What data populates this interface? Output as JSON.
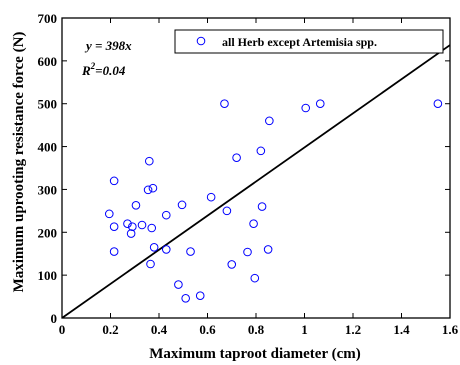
{
  "chart_data": {
    "type": "scatter",
    "title": "",
    "xlabel": "Maximum taproot diameter (cm)",
    "ylabel": "Maximum uprooting resistance force (N)",
    "xlim": [
      0,
      1.6
    ],
    "ylim": [
      0,
      700
    ],
    "xticks": [
      "0",
      "0.2",
      "0.4",
      "0.6",
      "0.8",
      "1",
      "1.2",
      "1.4",
      "1.6"
    ],
    "yticks": [
      "0",
      "100",
      "200",
      "300",
      "400",
      "500",
      "600",
      "700"
    ],
    "grid": false,
    "legend_position": "top-right",
    "series": [
      {
        "name": "all Herb except Artemisia spp.",
        "marker": "open-circle",
        "color": "#0000ff",
        "points": [
          [
            0.195,
            243
          ],
          [
            0.215,
            320
          ],
          [
            0.215,
            213
          ],
          [
            0.215,
            155
          ],
          [
            0.27,
            220
          ],
          [
            0.285,
            197
          ],
          [
            0.29,
            213
          ],
          [
            0.305,
            263
          ],
          [
            0.33,
            217
          ],
          [
            0.355,
            299
          ],
          [
            0.36,
            366
          ],
          [
            0.365,
            126
          ],
          [
            0.37,
            210
          ],
          [
            0.375,
            303
          ],
          [
            0.38,
            165
          ],
          [
            0.43,
            240
          ],
          [
            0.43,
            160
          ],
          [
            0.48,
            78
          ],
          [
            0.495,
            264
          ],
          [
            0.51,
            46
          ],
          [
            0.53,
            155
          ],
          [
            0.57,
            52
          ],
          [
            0.615,
            282
          ],
          [
            0.67,
            500
          ],
          [
            0.68,
            250
          ],
          [
            0.7,
            125
          ],
          [
            0.72,
            374
          ],
          [
            0.765,
            154
          ],
          [
            0.79,
            220
          ],
          [
            0.795,
            93
          ],
          [
            0.82,
            390
          ],
          [
            0.825,
            260
          ],
          [
            0.85,
            160
          ],
          [
            0.855,
            460
          ],
          [
            1.005,
            490
          ],
          [
            1.065,
            500
          ],
          [
            1.55,
            500
          ]
        ]
      }
    ],
    "fit_line": {
      "slope": 398,
      "intercept": 0,
      "color": "#000000"
    },
    "annotations": {
      "equation": "y = 398x",
      "r2_prefix": "R",
      "r2_sup": "2",
      "r2_value": "=0.04"
    }
  }
}
